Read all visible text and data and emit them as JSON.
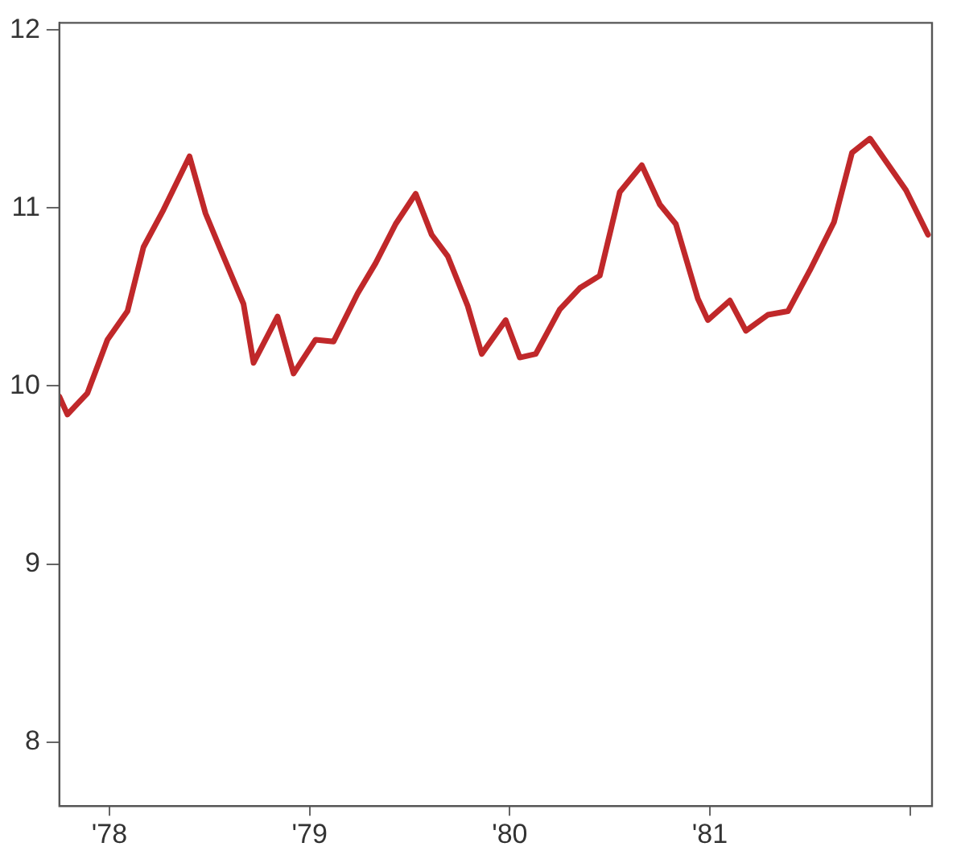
{
  "chart_data": {
    "type": "line",
    "x": [
      1977.75,
      1977.79,
      1977.89,
      1977.99,
      1978.09,
      1978.17,
      1978.27,
      1978.4,
      1978.48,
      1978.55,
      1978.67,
      1978.72,
      1978.84,
      1978.92,
      1979.03,
      1979.12,
      1979.24,
      1979.33,
      1979.43,
      1979.53,
      1979.61,
      1979.69,
      1979.79,
      1979.86,
      1979.98,
      1980.05,
      1980.13,
      1980.25,
      1980.35,
      1980.45,
      1980.55,
      1980.66,
      1980.75,
      1980.83,
      1980.94,
      1980.99,
      1981.1,
      1981.18,
      1981.29,
      1981.39,
      1981.5,
      1981.62,
      1981.71,
      1981.8,
      1981.98,
      1982.09
    ],
    "series": [
      {
        "color": "#c0282a",
        "values": [
          9.94,
          9.84,
          9.96,
          10.26,
          10.42,
          10.78,
          10.99,
          11.29,
          10.97,
          10.78,
          10.46,
          10.13,
          10.39,
          10.07,
          10.26,
          10.25,
          10.52,
          10.69,
          10.91,
          11.08,
          10.85,
          10.73,
          10.45,
          10.18,
          10.37,
          10.16,
          10.18,
          10.43,
          10.55,
          10.62,
          11.09,
          11.24,
          11.02,
          10.91,
          10.49,
          10.37,
          10.48,
          10.31,
          10.4,
          10.42,
          10.65,
          10.92,
          11.31,
          11.39,
          11.1,
          10.85
        ]
      }
    ],
    "xlim": [
      1977.75,
      1982.11
    ],
    "xticks": [
      {
        "value": 1978,
        "label": "'78"
      },
      {
        "value": 1979,
        "label": "'79"
      },
      {
        "value": 1980,
        "label": "'80"
      },
      {
        "value": 1981,
        "label": "'81"
      },
      {
        "value": 1982,
        "label": null
      }
    ],
    "ylim": [
      7.64,
      12.04
    ],
    "yticks": [
      8,
      9,
      10,
      11,
      12
    ],
    "grid": false,
    "legend": false,
    "marker": "none",
    "line_style": "solid"
  }
}
